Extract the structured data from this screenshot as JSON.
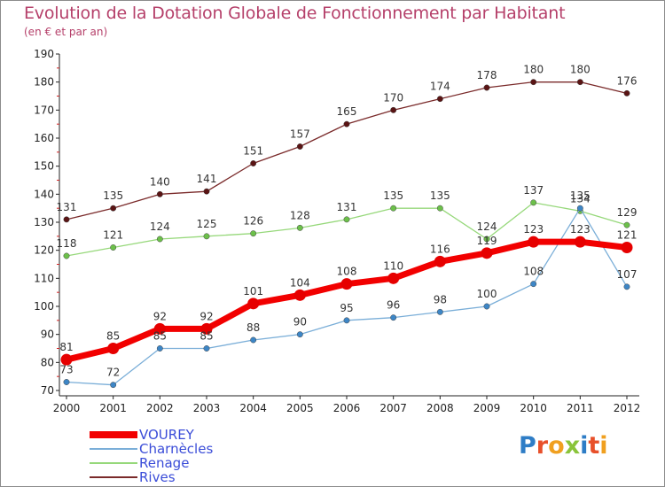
{
  "title": "Evolution de la Dotation Globale de Fonctionnement par Habitant",
  "subtitle": "(en € et par an)",
  "logo": {
    "text": "Proxiti",
    "letter_colors": [
      "#2e7dc6",
      "#e8502a",
      "#f0a020",
      "#8ac43a",
      "#2e7dc6",
      "#e8502a",
      "#f0a020"
    ]
  },
  "chart_data": {
    "type": "line",
    "title": "Evolution de la Dotation Globale de Fonctionnement par Habitant",
    "subtitle": "(en € et par an)",
    "xlabel": "",
    "ylabel": "",
    "ylim": [
      70,
      190
    ],
    "yticks": [
      70,
      80,
      90,
      100,
      110,
      120,
      130,
      140,
      150,
      160,
      170,
      180,
      190
    ],
    "x": [
      2000,
      2001,
      2002,
      2003,
      2004,
      2005,
      2006,
      2007,
      2008,
      2009,
      2010,
      2011,
      2012
    ],
    "grid": false,
    "legend_position": "bottom-left",
    "series": [
      {
        "name": "Rives",
        "color": "#7a2a2a",
        "marker_color": "#5a1414",
        "values": [
          131,
          135,
          140,
          141,
          151,
          157,
          165,
          170,
          174,
          178,
          180,
          180,
          176
        ],
        "labels": [
          "131",
          "135",
          "140",
          "141",
          "151",
          "157",
          "165",
          "170",
          "174",
          "178",
          "180",
          "180",
          "176"
        ]
      },
      {
        "name": "Renage",
        "color": "#96d87a",
        "marker_color": "#6cc04a",
        "values": [
          118,
          121,
          124,
          125,
          126,
          128,
          131,
          135,
          135,
          124,
          137,
          134,
          129
        ],
        "labels": [
          "118",
          "121",
          "124",
          "125",
          "126",
          "128",
          "131",
          "135",
          "135",
          "124",
          "137",
          "134",
          "129"
        ]
      },
      {
        "name": "Charnècles",
        "color": "#7aaed8",
        "marker_color": "#3d86c6",
        "values": [
          73,
          72,
          85,
          85,
          88,
          90,
          95,
          96,
          98,
          100,
          108,
          135,
          107
        ],
        "labels": [
          "73",
          "72",
          "85",
          "85",
          "88",
          "90",
          "95",
          "96",
          "98",
          "100",
          "108",
          "135",
          "107"
        ]
      },
      {
        "name": "VOUREY",
        "color": "#f20000",
        "marker_color": "#e60000",
        "values": [
          81,
          85,
          92,
          92,
          101,
          104,
          108,
          110,
          116,
          119,
          123,
          123,
          121
        ],
        "labels": [
          "81",
          "85",
          "92",
          "92",
          "101",
          "104",
          "108",
          "110",
          "116",
          "119",
          "123",
          "123",
          "121"
        ]
      }
    ],
    "legend": [
      "VOUREY",
      "Charnècles",
      "Renage",
      "Rives"
    ]
  }
}
